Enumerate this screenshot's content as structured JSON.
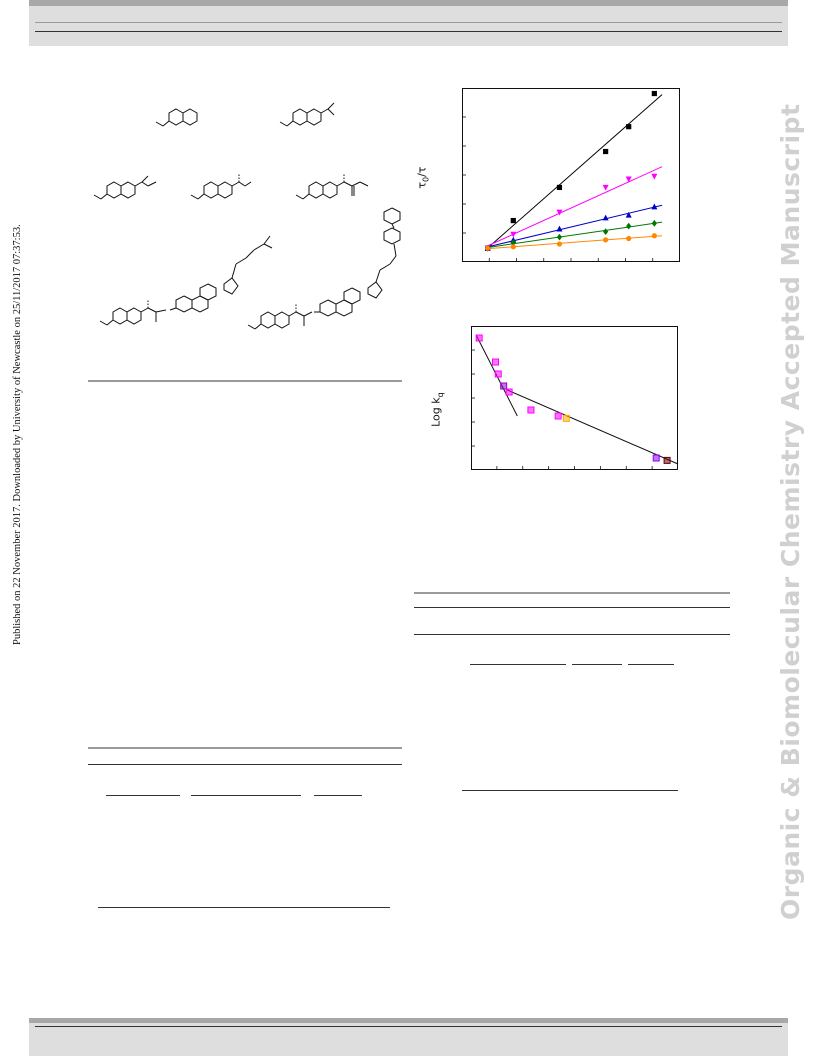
{
  "side_text": {
    "published": "Published on 22 November 2017. Downloaded by University of Newcastle on 25/11/2017 07:37:53.",
    "watermark": "Organic & Biomolecular Chemistry Accepted Manuscript"
  },
  "figure_labels": {
    "top_y_label_main": "τ",
    "top_y_label_sub0": "0",
    "top_y_label_slash": "/τ",
    "bottom_y_label_main": "Log k",
    "bottom_y_label_sub": "q"
  },
  "chart_data": [
    {
      "type": "scatter",
      "title": "",
      "ylabel": "τ0/τ",
      "grid": false,
      "series": [
        {
          "color": "#000000",
          "marker": "square",
          "x": [
            0,
            1,
            2.8,
            4.6,
            5.5,
            6.5
          ],
          "y": [
            1.0,
            2.0,
            3.2,
            4.5,
            5.4,
            6.6
          ]
        },
        {
          "color": "#ff00ff",
          "marker": "triangle-down",
          "x": [
            0,
            1,
            2.8,
            4.6,
            5.5,
            6.5
          ],
          "y": [
            1.0,
            1.5,
            2.3,
            3.2,
            3.5,
            3.6
          ]
        },
        {
          "color": "#0000cc",
          "marker": "triangle-up",
          "x": [
            0,
            1,
            2.8,
            4.6,
            5.5,
            6.5
          ],
          "y": [
            1.0,
            1.3,
            1.7,
            2.1,
            2.2,
            2.5
          ]
        },
        {
          "color": "#007700",
          "marker": "diamond",
          "x": [
            0,
            1,
            2.8,
            4.6,
            5.5,
            6.5
          ],
          "y": [
            1.0,
            1.2,
            1.4,
            1.6,
            1.8,
            1.9
          ]
        },
        {
          "color": "#ff8800",
          "marker": "circle",
          "x": [
            0,
            1,
            2.8,
            4.6,
            5.5,
            6.5
          ],
          "y": [
            1.0,
            1.05,
            1.15,
            1.3,
            1.35,
            1.45
          ]
        }
      ],
      "xlim": [
        -1,
        7.5
      ],
      "ylim": [
        0.5,
        6.8
      ]
    },
    {
      "type": "scatter",
      "title": "",
      "ylabel": "Log kq",
      "grid": false,
      "points": [
        {
          "x": 0.3,
          "y": 9.7,
          "color": "#ff00ff"
        },
        {
          "x": 0.9,
          "y": 9.5,
          "color": "#ff00ff"
        },
        {
          "x": 1.0,
          "y": 9.4,
          "color": "#ff00ff"
        },
        {
          "x": 1.2,
          "y": 9.3,
          "color": "#9900cc"
        },
        {
          "x": 1.4,
          "y": 9.25,
          "color": "#ff00ff"
        },
        {
          "x": 2.2,
          "y": 9.1,
          "color": "#ff00ff"
        },
        {
          "x": 3.2,
          "y": 9.05,
          "color": "#ff00ff"
        },
        {
          "x": 3.5,
          "y": 9.03,
          "color": "#ffaa00"
        },
        {
          "x": 6.8,
          "y": 8.7,
          "color": "#8800ff"
        },
        {
          "x": 7.2,
          "y": 8.68,
          "color": "#660000"
        }
      ],
      "fit_lines": [
        {
          "x": [
            0.2,
            1.7
          ],
          "y": [
            9.72,
            9.05
          ]
        },
        {
          "x": [
            1.3,
            7.6
          ],
          "y": [
            9.27,
            8.65
          ]
        }
      ],
      "xlim": [
        0,
        7.6
      ],
      "ylim": [
        8.6,
        9.8
      ]
    }
  ]
}
